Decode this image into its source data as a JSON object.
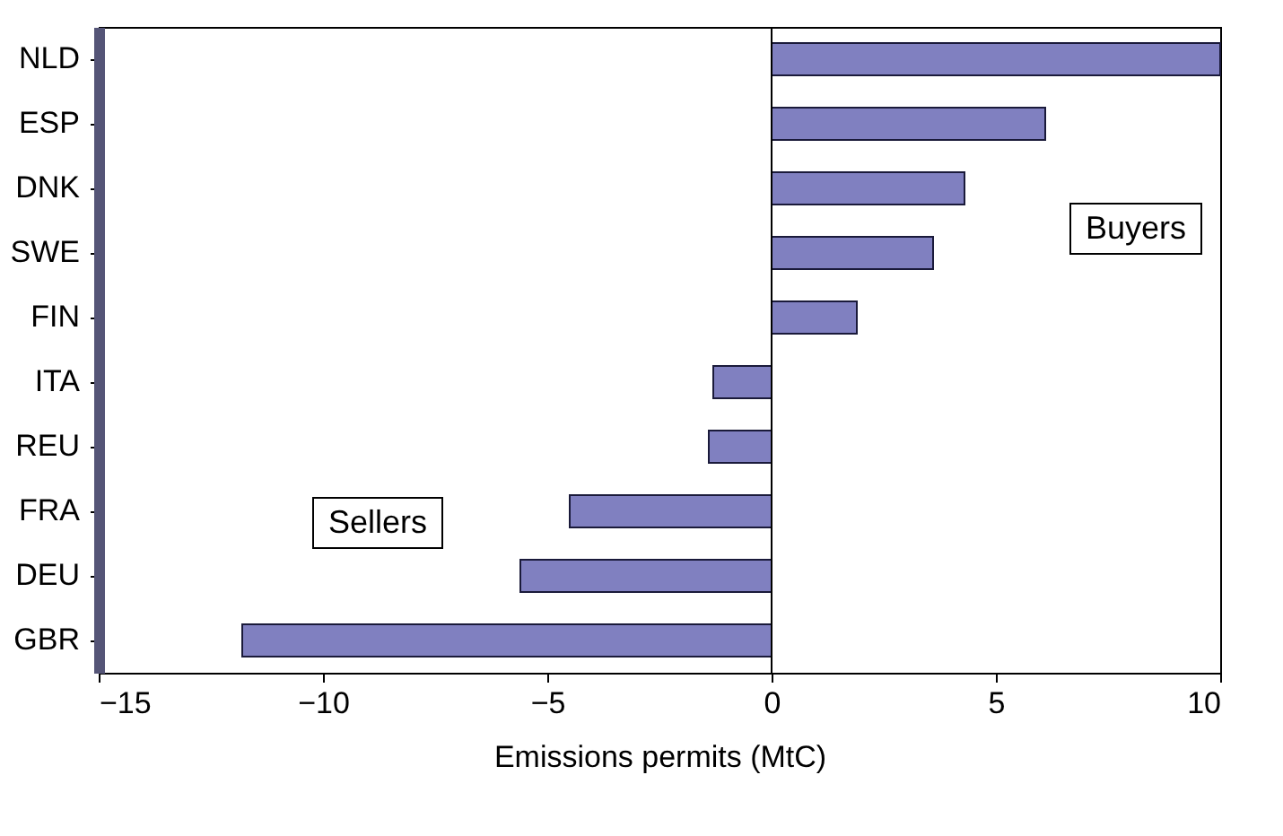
{
  "chart_data": {
    "type": "bar",
    "orientation": "horizontal",
    "xlabel": "Emissions permits (MtC)",
    "categories": [
      "NLD",
      "ESP",
      "DNK",
      "SWE",
      "FIN",
      "ITA",
      "REU",
      "FRA",
      "DEU",
      "GBR"
    ],
    "values": [
      10.0,
      6.1,
      4.3,
      3.6,
      1.9,
      -1.3,
      -1.4,
      -4.5,
      -5.6,
      -11.8
    ],
    "color": "#8080c0",
    "xlim": [
      -15,
      10
    ],
    "xticks": [
      -15,
      -10,
      -5,
      0,
      5,
      10
    ],
    "ref_lines": [
      {
        "axis": "x",
        "value": 0
      }
    ],
    "annotations": [
      "Buyers",
      "Sellers"
    ],
    "grid": false
  }
}
